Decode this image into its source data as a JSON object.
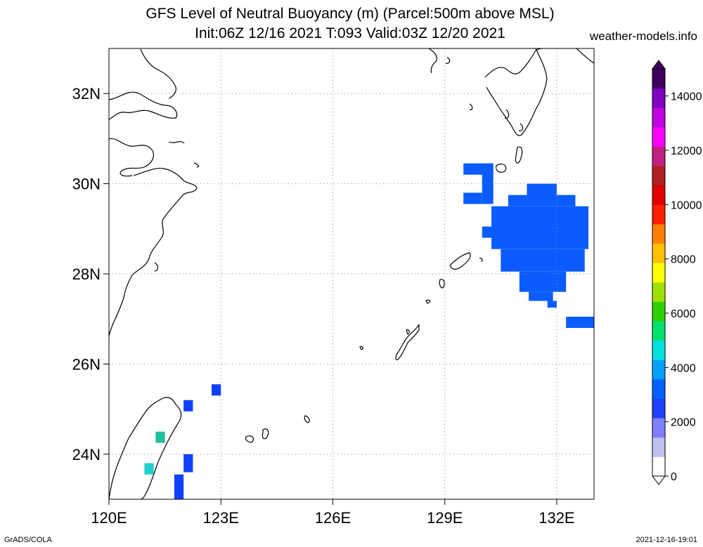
{
  "title": {
    "line1": "GFS Level of Neutral Buoyancy (m) (Parcel:500m above MSL)",
    "line2": "Init:06Z 12/16 2021 T:093 Valid:03Z 12/20 2021"
  },
  "site": "weather-models.info",
  "footer": {
    "left": "GrADS/COLA",
    "right": "2021-12-16-19:01"
  },
  "map": {
    "lon_range": [
      120,
      133.0
    ],
    "lat_range": [
      23.0,
      33.0
    ],
    "lon_ticks": [
      {
        "v": 120,
        "label": "120E"
      },
      {
        "v": 123,
        "label": "123E"
      },
      {
        "v": 126,
        "label": "126E"
      },
      {
        "v": 129,
        "label": "129E"
      },
      {
        "v": 132,
        "label": "132E"
      }
    ],
    "lat_ticks": [
      {
        "v": 24,
        "label": "24N"
      },
      {
        "v": 26,
        "label": "26N"
      },
      {
        "v": 28,
        "label": "28N"
      },
      {
        "v": 30,
        "label": "30N"
      },
      {
        "v": 32,
        "label": "32N"
      }
    ],
    "grid": true
  },
  "colorbar": {
    "range": [
      0,
      15000
    ],
    "labels": [
      "0",
      "2000",
      "4000",
      "6000",
      "8000",
      "10000",
      "12000",
      "14000"
    ],
    "stops": [
      "#ffffff",
      "#c0c0f0",
      "#8080ff",
      "#2040ff",
      "#0060ff",
      "#00a0ff",
      "#00e0e0",
      "#00e070",
      "#30d000",
      "#a0e000",
      "#ffff00",
      "#ffc000",
      "#ff8000",
      "#ff2000",
      "#e00000",
      "#b02020",
      "#c02080",
      "#ff00ff",
      "#c000e0",
      "#8000c0",
      "#400060"
    ]
  },
  "fields": [
    {
      "lon": [
        129.5,
        130.3
      ],
      "lat": [
        30.2,
        30.45
      ],
      "color": "#0a5cff"
    },
    {
      "lon": [
        130.0,
        130.3
      ],
      "lat": [
        29.55,
        30.45
      ],
      "color": "#0a5cff"
    },
    {
      "lon": [
        129.5,
        130.0
      ],
      "lat": [
        29.55,
        29.8
      ],
      "color": "#0a5cff"
    },
    {
      "lon": [
        130.25,
        132.85
      ],
      "lat": [
        28.55,
        29.5
      ],
      "color": "#0a5cff"
    },
    {
      "lon": [
        131.2,
        132.0
      ],
      "lat": [
        29.5,
        30.0
      ],
      "color": "#0a5cff"
    },
    {
      "lon": [
        130.7,
        131.2
      ],
      "lat": [
        29.5,
        29.75
      ],
      "color": "#0a5cff"
    },
    {
      "lon": [
        132.0,
        132.5
      ],
      "lat": [
        29.5,
        29.75
      ],
      "color": "#0a5cff"
    },
    {
      "lon": [
        130.0,
        130.25
      ],
      "lat": [
        28.8,
        29.05
      ],
      "color": "#0a5cff"
    },
    {
      "lon": [
        130.5,
        132.75
      ],
      "lat": [
        28.05,
        28.55
      ],
      "color": "#0a5cff"
    },
    {
      "lon": [
        131.0,
        132.25
      ],
      "lat": [
        27.6,
        28.05
      ],
      "color": "#0a5cff"
    },
    {
      "lon": [
        131.25,
        131.9
      ],
      "lat": [
        27.4,
        27.6
      ],
      "color": "#0a5cff"
    },
    {
      "lon": [
        131.75,
        132.0
      ],
      "lat": [
        27.25,
        27.4
      ],
      "color": "#0a5cff"
    },
    {
      "lon": [
        132.25,
        133.0
      ],
      "lat": [
        26.8,
        27.05
      ],
      "color": "#0a5cff"
    },
    {
      "lon": [
        122.75,
        123.0
      ],
      "lat": [
        25.3,
        25.55
      ],
      "color": "#1040ff"
    },
    {
      "lon": [
        122.0,
        122.25
      ],
      "lat": [
        24.95,
        25.2
      ],
      "color": "#1040ff"
    },
    {
      "lon": [
        122.0,
        122.25
      ],
      "lat": [
        23.6,
        24.0
      ],
      "color": "#1040ff"
    },
    {
      "lon": [
        121.75,
        122.0
      ],
      "lat": [
        23.0,
        23.55
      ],
      "color": "#1040ff"
    },
    {
      "lon": [
        121.25,
        121.5
      ],
      "lat": [
        24.25,
        24.5
      ],
      "color": "#20c0a0"
    },
    {
      "lon": [
        120.95,
        121.2
      ],
      "lat": [
        23.55,
        23.8
      ],
      "color": "#20d0d0"
    }
  ]
}
